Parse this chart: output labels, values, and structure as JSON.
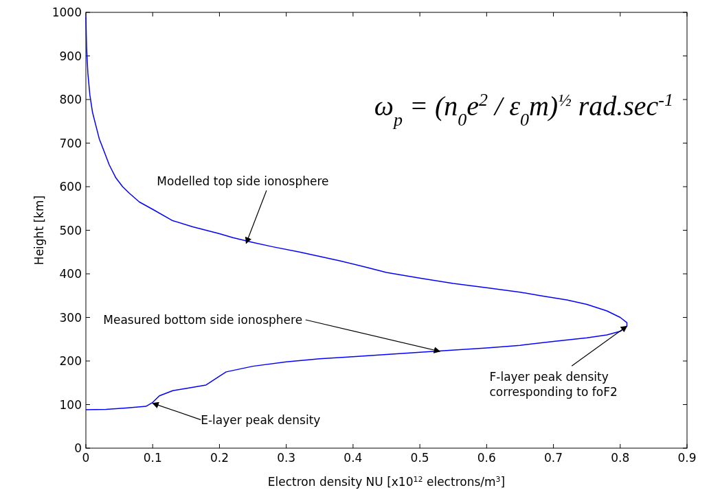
{
  "chart_data": {
    "type": "line",
    "xlabel": "Electron density NU [x10$^{12}$ electrons/m$^{3}$]",
    "ylabel": "Height [km]",
    "xlim": [
      0,
      0.9
    ],
    "ylim": [
      0,
      1000
    ],
    "xticks": [
      0,
      0.1,
      0.2,
      0.3,
      0.4,
      0.5,
      0.6,
      0.7,
      0.8,
      0.9
    ],
    "yticks": [
      0,
      100,
      200,
      300,
      400,
      500,
      600,
      700,
      800,
      900,
      1000
    ],
    "grid": false,
    "marker": "none",
    "line_style": "solid",
    "series": [
      {
        "color": "#0000ff",
        "x": [
          0,
          0.03,
          0.06,
          0.09,
          0.1,
          0.11,
          0.13,
          0.15,
          0.18,
          0.2,
          0.21,
          0.25,
          0.3,
          0.35,
          0.4,
          0.45,
          0.52,
          0.6,
          0.65,
          0.7,
          0.75,
          0.78,
          0.8,
          0.81,
          0.81,
          0.8,
          0.78,
          0.75,
          0.72,
          0.68,
          0.65,
          0.6,
          0.55,
          0.5,
          0.45,
          0.42,
          0.38,
          0.32,
          0.28,
          0.25,
          0.22,
          0.2,
          0.16,
          0.13,
          0.1,
          0.08,
          0.065,
          0.055,
          0.045,
          0.035,
          0.025,
          0.02,
          0.015,
          0.01,
          0.006,
          0.003,
          0.001,
          0
        ],
        "values": [
          88,
          89,
          92,
          96,
          105,
          120,
          132,
          137,
          145,
          165,
          175,
          188,
          198,
          205,
          210,
          215,
          222,
          230,
          236,
          245,
          253,
          260,
          268,
          280,
          288,
          300,
          315,
          330,
          340,
          350,
          358,
          368,
          378,
          390,
          403,
          415,
          430,
          450,
          462,
          472,
          483,
          492,
          508,
          522,
          548,
          565,
          585,
          600,
          620,
          650,
          690,
          710,
          740,
          770,
          810,
          860,
          920,
          990
        ]
      }
    ],
    "annotations": [
      "ω$_{p}$ = (n$_{0}$e$^{2}$ / ε$_{0}$m)$^{½}$ rad.sec$^{-1}$",
      {
        "text": "Modelled top side ionosphere",
        "x": 0.24,
        "y": 470
      },
      {
        "text": "Measured bottom side ionosphere",
        "x": 0.53,
        "y": 222
      },
      {
        "text": "E-layer peak density",
        "x": 0.1,
        "y": 103
      },
      {
        "text": "F-layer peak density corresponding to foF2",
        "x": 0.81,
        "y": 280
      }
    ]
  }
}
